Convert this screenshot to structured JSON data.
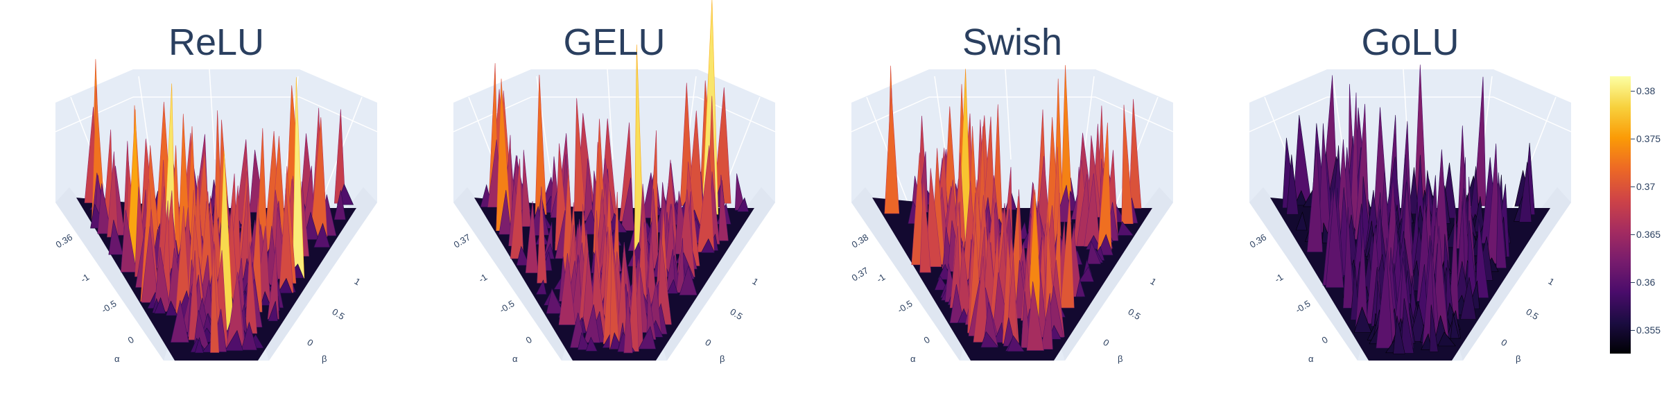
{
  "chart_data": {
    "type": "surface",
    "colorscale": [
      "#000004",
      "#1b0c41",
      "#4a0c6b",
      "#781c6d",
      "#a52c60",
      "#cf4446",
      "#ed6925",
      "#fb9b06",
      "#f7d13d",
      "#fcffa4"
    ],
    "colorbar": {
      "range": [
        0.3525,
        0.3815
      ],
      "ticks": [
        "0.38",
        "0.375",
        "0.37",
        "0.365",
        "0.36",
        "0.355"
      ]
    },
    "panels": [
      {
        "title": "ReLU",
        "xaxis_label": "α",
        "yaxis_label": "β",
        "x_ticks": [
          "-1",
          "-0.5",
          "0"
        ],
        "y_ticks": [
          "1",
          "0.5",
          "0"
        ],
        "z_ticks": [
          "0.36"
        ],
        "z_base": 0.357,
        "z_amp": 0.016,
        "seed": 11
      },
      {
        "title": "GELU",
        "xaxis_label": "α",
        "yaxis_label": "β",
        "x_ticks": [
          "-1",
          "-0.5",
          "0"
        ],
        "y_ticks": [
          "1",
          "0.5",
          "0"
        ],
        "z_ticks": [
          "0.37"
        ],
        "z_base": 0.358,
        "z_amp": 0.014,
        "seed": 23
      },
      {
        "title": "Swish",
        "xaxis_label": "α",
        "yaxis_label": "β",
        "x_ticks": [
          "-1",
          "-0.5",
          "0"
        ],
        "y_ticks": [
          "1",
          "0.5",
          "0"
        ],
        "z_ticks": [
          "0.38",
          "0.37"
        ],
        "z_base": 0.358,
        "z_amp": 0.015,
        "seed": 37
      },
      {
        "title": "GoLU",
        "xaxis_label": "α",
        "yaxis_label": "β",
        "x_ticks": [
          "-1",
          "-0.5",
          "0"
        ],
        "y_ticks": [
          "1",
          "0.5",
          "0"
        ],
        "z_ticks": [
          "0.36"
        ],
        "z_base": 0.3545,
        "z_amp": 0.008,
        "seed": 51
      }
    ]
  }
}
